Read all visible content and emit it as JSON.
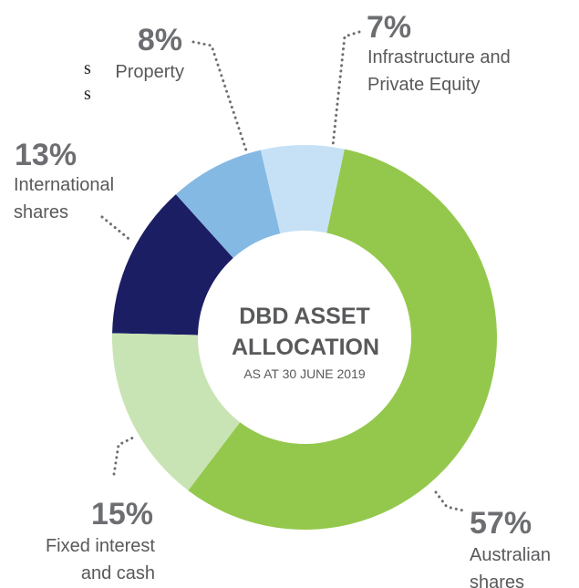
{
  "chart_data": {
    "type": "donut",
    "title": "DBD ASSET ALLOCATION",
    "subtitle": "AS AT 30 JUNE 2019",
    "categories": [
      "Australian shares",
      "Fixed interest and cash",
      "International shares",
      "Property",
      "Infrastructure and Private Equity"
    ],
    "values": [
      57,
      15,
      13,
      8,
      7
    ],
    "value_labels": [
      "57%",
      "15%",
      "13%",
      "8%",
      "7%"
    ],
    "colors": [
      "#94c84c",
      "#c9e4b4",
      "#1b1e63",
      "#84b9e4",
      "#c6e1f5"
    ],
    "cropped_text": [
      "s",
      "s"
    ]
  }
}
